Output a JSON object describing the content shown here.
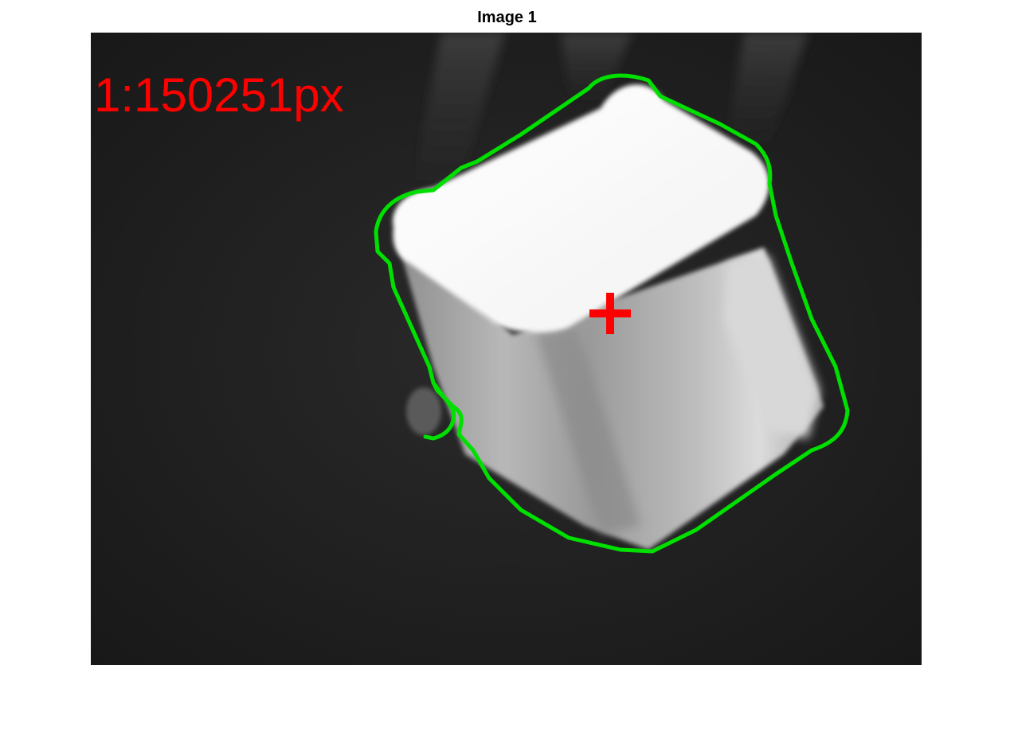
{
  "figure": {
    "title": "Image 1"
  },
  "image": {
    "overlay_label": "1:150251px",
    "label_color": "#ff0000",
    "contour_color": "#00e000",
    "centroid_marker": "plus",
    "centroid_color": "#ff0000",
    "background_color": "#1e1e1e",
    "object": "bright-cube"
  }
}
